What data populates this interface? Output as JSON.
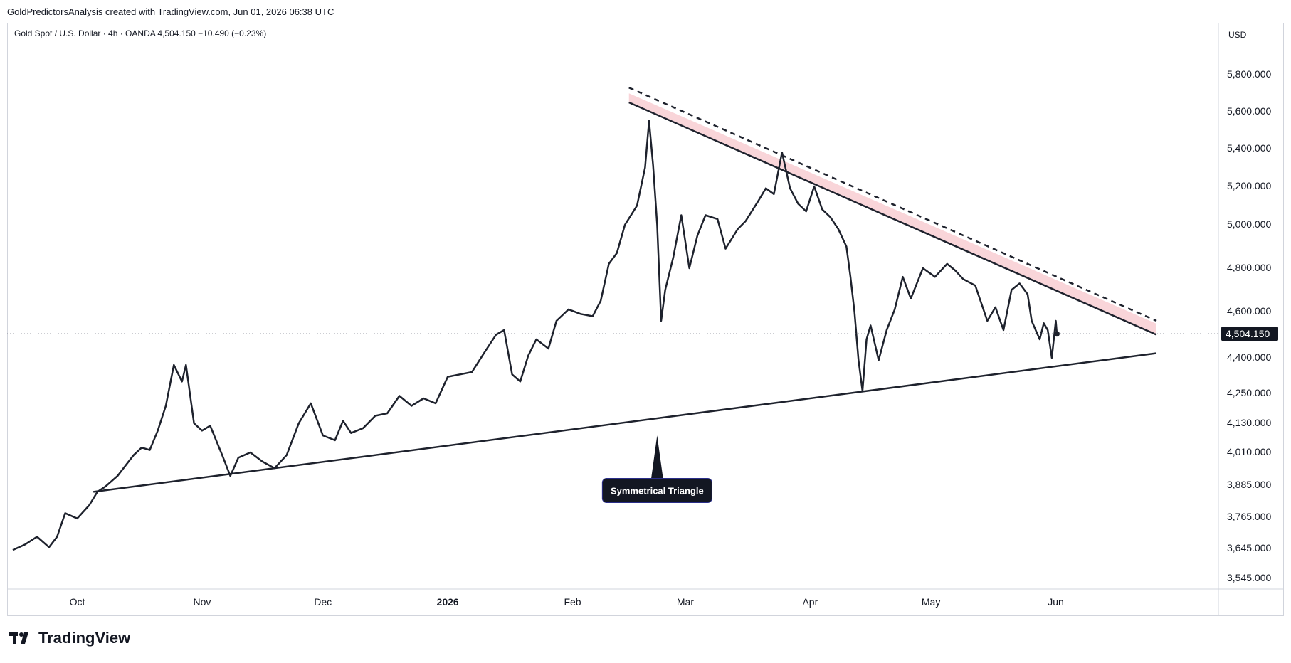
{
  "header": {
    "caption": "GoldPredictorsAnalysis created with TradingView.com, Jun 01, 2026 06:38 UTC"
  },
  "legend": {
    "text": "Gold Spot / U.S. Dollar · 4h · OANDA  4,504.150  −10.490 (−0.23%)"
  },
  "brand": {
    "name": "TradingView",
    "logo_icon": "tradingview-logo-icon"
  },
  "colors": {
    "price_line": "#1e222d",
    "trendline": "#1e222d",
    "resistance_band": "#f9d5d9",
    "price_label_bg": "#131722",
    "annotation_bg": "#131722",
    "axis_text": "#131722",
    "grid_border": "#d1d4dc"
  },
  "chart_data": {
    "type": "line",
    "title": "Gold Spot / U.S. Dollar",
    "timeframe": "4h",
    "exchange": "OANDA",
    "currency": "USD",
    "x_ticks": [
      "Oct",
      "Nov",
      "Dec",
      "2026",
      "Feb",
      "Mar",
      "Apr",
      "May",
      "Jun"
    ],
    "y_ticks": [
      "5,800.000",
      "5,600.000",
      "5,400.000",
      "5,200.000",
      "5,000.000",
      "4,800.000",
      "4,600.000",
      "4,400.000",
      "4,250.000",
      "4,130.000",
      "4,010.000",
      "3,885.000",
      "3,765.000",
      "3,645.000",
      "3,545.000"
    ],
    "last_price": 4504.15,
    "last_price_label": "4,504.150",
    "change": -10.49,
    "change_pct": -0.23,
    "annotation": "Symmetrical Triangle",
    "grid": false,
    "series": [
      {
        "values": [
          [
            "2025-09-15",
            3640
          ],
          [
            "2025-09-18",
            3660
          ],
          [
            "2025-09-21",
            3690
          ],
          [
            "2025-09-24",
            3650
          ],
          [
            "2025-09-26",
            3690
          ],
          [
            "2025-09-28",
            3780
          ],
          [
            "2025-10-01",
            3760
          ],
          [
            "2025-10-04",
            3810
          ],
          [
            "2025-10-06",
            3860
          ],
          [
            "2025-10-08",
            3880
          ],
          [
            "2025-10-11",
            3920
          ],
          [
            "2025-10-13",
            3960
          ],
          [
            "2025-10-15",
            4000
          ],
          [
            "2025-10-17",
            4030
          ],
          [
            "2025-10-19",
            4020
          ],
          [
            "2025-10-21",
            4100
          ],
          [
            "2025-10-23",
            4200
          ],
          [
            "2025-10-25",
            4370
          ],
          [
            "2025-10-27",
            4300
          ],
          [
            "2025-10-28",
            4370
          ],
          [
            "2025-10-30",
            4130
          ],
          [
            "2025-11-01",
            4100
          ],
          [
            "2025-11-03",
            4120
          ],
          [
            "2025-11-06",
            4000
          ],
          [
            "2025-11-08",
            3920
          ],
          [
            "2025-11-10",
            3990
          ],
          [
            "2025-11-13",
            4010
          ],
          [
            "2025-11-16",
            3975
          ],
          [
            "2025-11-19",
            3950
          ],
          [
            "2025-11-22",
            4000
          ],
          [
            "2025-11-25",
            4130
          ],
          [
            "2025-11-28",
            4210
          ],
          [
            "2025-12-01",
            4080
          ],
          [
            "2025-12-04",
            4060
          ],
          [
            "2025-12-06",
            4140
          ],
          [
            "2025-12-08",
            4090
          ],
          [
            "2025-12-11",
            4110
          ],
          [
            "2025-12-14",
            4160
          ],
          [
            "2025-12-17",
            4170
          ],
          [
            "2025-12-20",
            4240
          ],
          [
            "2025-12-23",
            4200
          ],
          [
            "2025-12-26",
            4230
          ],
          [
            "2025-12-29",
            4210
          ],
          [
            "2026-01-01",
            4320
          ],
          [
            "2026-01-04",
            4330
          ],
          [
            "2026-01-07",
            4340
          ],
          [
            "2026-01-10",
            4420
          ],
          [
            "2026-01-13",
            4500
          ],
          [
            "2026-01-15",
            4520
          ],
          [
            "2026-01-17",
            4330
          ],
          [
            "2026-01-19",
            4300
          ],
          [
            "2026-01-21",
            4410
          ],
          [
            "2026-01-23",
            4480
          ],
          [
            "2026-01-26",
            4440
          ],
          [
            "2026-01-28",
            4560
          ],
          [
            "2026-01-31",
            4610
          ],
          [
            "2026-02-03",
            4590
          ],
          [
            "2026-02-06",
            4580
          ],
          [
            "2026-02-08",
            4650
          ],
          [
            "2026-02-10",
            4820
          ],
          [
            "2026-02-12",
            4870
          ],
          [
            "2026-02-14",
            5000
          ],
          [
            "2026-02-17",
            5100
          ],
          [
            "2026-02-19",
            5300
          ],
          [
            "2026-02-20",
            5550
          ],
          [
            "2026-02-21",
            5310
          ],
          [
            "2026-02-22",
            5000
          ],
          [
            "2026-02-23",
            4560
          ],
          [
            "2026-02-24",
            4700
          ],
          [
            "2026-02-26",
            4850
          ],
          [
            "2026-02-28",
            5050
          ],
          [
            "2026-03-02",
            4800
          ],
          [
            "2026-03-04",
            4950
          ],
          [
            "2026-03-06",
            5050
          ],
          [
            "2026-03-09",
            5030
          ],
          [
            "2026-03-11",
            4890
          ],
          [
            "2026-03-14",
            4980
          ],
          [
            "2026-03-16",
            5020
          ],
          [
            "2026-03-19",
            5120
          ],
          [
            "2026-03-21",
            5190
          ],
          [
            "2026-03-23",
            5160
          ],
          [
            "2026-03-25",
            5380
          ],
          [
            "2026-03-27",
            5190
          ],
          [
            "2026-03-29",
            5110
          ],
          [
            "2026-03-31",
            5070
          ],
          [
            "2026-04-02",
            5200
          ],
          [
            "2026-04-04",
            5080
          ],
          [
            "2026-04-06",
            5040
          ],
          [
            "2026-04-08",
            4980
          ],
          [
            "2026-04-10",
            4900
          ],
          [
            "2026-04-11",
            4760
          ],
          [
            "2026-04-12",
            4600
          ],
          [
            "2026-04-13",
            4390
          ],
          [
            "2026-04-14",
            4260
          ],
          [
            "2026-04-15",
            4480
          ],
          [
            "2026-04-16",
            4540
          ],
          [
            "2026-04-18",
            4390
          ],
          [
            "2026-04-20",
            4520
          ],
          [
            "2026-04-22",
            4610
          ],
          [
            "2026-04-24",
            4760
          ],
          [
            "2026-04-26",
            4660
          ],
          [
            "2026-04-29",
            4800
          ],
          [
            "2026-05-02",
            4760
          ],
          [
            "2026-05-05",
            4820
          ],
          [
            "2026-05-07",
            4790
          ],
          [
            "2026-05-09",
            4750
          ],
          [
            "2026-05-12",
            4720
          ],
          [
            "2026-05-15",
            4560
          ],
          [
            "2026-05-17",
            4620
          ],
          [
            "2026-05-19",
            4520
          ],
          [
            "2026-05-21",
            4700
          ],
          [
            "2026-05-23",
            4730
          ],
          [
            "2026-05-25",
            4680
          ],
          [
            "2026-05-26",
            4560
          ],
          [
            "2026-05-28",
            4480
          ],
          [
            "2026-05-29",
            4550
          ],
          [
            "2026-05-30",
            4520
          ],
          [
            "2026-05-31",
            4400
          ],
          [
            "2026-06-01",
            4560
          ],
          [
            "2026-06-01T06",
            4504
          ]
        ]
      }
    ],
    "drawings": {
      "lower_trendline": [
        [
          "2025-10-05",
          3860
        ],
        [
          "2026-06-26",
          4420
        ]
      ],
      "upper_trendline": [
        [
          "2026-02-15",
          5650
        ],
        [
          "2026-06-26",
          4500
        ]
      ],
      "upper_dashed_line": [
        [
          "2026-02-15",
          5730
        ],
        [
          "2026-06-26",
          4560
        ]
      ],
      "annotation_point": [
        "2026-02-22",
        4080
      ],
      "annotation_label_at": [
        "2026-02-22",
        3865
      ]
    }
  }
}
